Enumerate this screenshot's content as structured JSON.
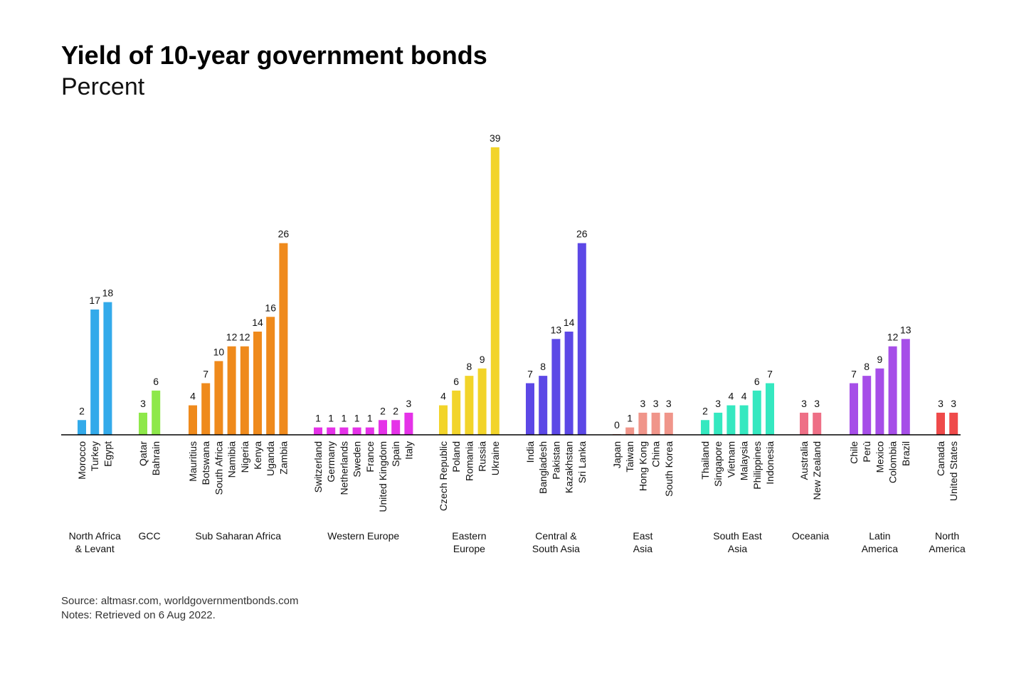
{
  "chart_data": {
    "type": "bar",
    "title": "Yield of 10-year government bonds",
    "subtitle": "Percent",
    "source": "Source: altmasr.com, worldgovernmentbonds.com",
    "notes": "Notes: Retrieved on 6 Aug 2022.",
    "ylim": [
      0,
      39
    ],
    "grid": false,
    "groups": [
      {
        "name": [
          "North Africa",
          "& Levant"
        ],
        "color": "#33aaea",
        "categories": [
          "Morocco",
          "Turkey",
          "Egypt"
        ],
        "values": [
          2,
          17,
          18
        ]
      },
      {
        "name": [
          "GCC"
        ],
        "color": "#8ee84a",
        "categories": [
          "Qatar",
          "Bahrain"
        ],
        "values": [
          3,
          6
        ]
      },
      {
        "name": [
          "Sub Saharan Africa"
        ],
        "color": "#ef8a1c",
        "categories": [
          "Mauritius",
          "Botswana",
          "South Africa",
          "Namibia",
          "Nigeria",
          "Kenya",
          "Uganda",
          "Zambia"
        ],
        "values": [
          4,
          7,
          10,
          12,
          12,
          14,
          16,
          26
        ]
      },
      {
        "name": [
          "Western Europe"
        ],
        "color": "#e532e8",
        "categories": [
          "Switzerland",
          "Germany",
          "Netherlands",
          "Sweden",
          "France",
          "United Kingdom",
          "Spain",
          "Italy"
        ],
        "values": [
          1,
          1,
          1,
          1,
          1,
          2,
          2,
          3
        ]
      },
      {
        "name": [
          "Eastern",
          "Europe"
        ],
        "color": "#f2d42a",
        "categories": [
          "Czech Republic",
          "Poland",
          "Romania",
          "Russia",
          "Ukraine"
        ],
        "values": [
          4,
          6,
          8,
          9,
          39
        ]
      },
      {
        "name": [
          "Central &",
          "South Asia"
        ],
        "color": "#5c48e6",
        "categories": [
          "India",
          "Bangladesh",
          "Pakistan",
          "Kazakhstan",
          "Sri Lanka"
        ],
        "values": [
          7,
          8,
          13,
          14,
          26
        ]
      },
      {
        "name": [
          "East",
          "Asia"
        ],
        "color": "#f0958a",
        "categories": [
          "Japan",
          "Taiwan",
          "Hong Kong",
          "China",
          "South Korea"
        ],
        "values": [
          0,
          1,
          3,
          3,
          3
        ]
      },
      {
        "name": [
          "South East",
          "Asia"
        ],
        "color": "#35e8c0",
        "categories": [
          "Thailand",
          "Singapore",
          "Vietnam",
          "Malaysia",
          "Philippines",
          "Indonesia"
        ],
        "values": [
          2,
          3,
          4,
          4,
          6,
          7
        ]
      },
      {
        "name": [
          "Oceania"
        ],
        "color": "#ee6f86",
        "categories": [
          "Australia",
          "New Zealand"
        ],
        "values": [
          3,
          3
        ]
      },
      {
        "name": [
          "Latin",
          "America"
        ],
        "color": "#a64ee8",
        "categories": [
          "Chile",
          "Perù",
          "Mexico",
          "Colombia",
          "Brazil"
        ],
        "values": [
          7,
          8,
          9,
          12,
          13
        ]
      },
      {
        "name": [
          "North",
          "America"
        ],
        "color": "#ef4a4a",
        "categories": [
          "Canada",
          "United States"
        ],
        "values": [
          3,
          3
        ]
      }
    ]
  }
}
